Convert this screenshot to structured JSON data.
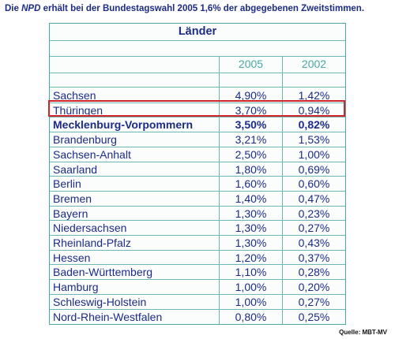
{
  "headline": {
    "prefix": "Die ",
    "party": "NPD",
    "suffix": " erhält bei der Bundestagswahl 2005 1,6% der abgegebenen Zweitstimmen."
  },
  "table": {
    "title": "Länder",
    "columns": [
      "2005",
      "2002"
    ],
    "rows": [
      {
        "name": "Sachsen",
        "v2005": "4,90%",
        "v2002": "1,42%"
      },
      {
        "name": "Thüringen",
        "v2005": "3,70%",
        "v2002": "0,94%"
      },
      {
        "name": "Mecklenburg-Vorpommern",
        "v2005": "3,50%",
        "v2002": "0,82%"
      },
      {
        "name": "Brandenburg",
        "v2005": "3,21%",
        "v2002": "1,53%"
      },
      {
        "name": "Sachsen-Anhalt",
        "v2005": "2,50%",
        "v2002": "1,00%"
      },
      {
        "name": "Saarland",
        "v2005": "1,80%",
        "v2002": "0,69%"
      },
      {
        "name": "Berlin",
        "v2005": "1,60%",
        "v2002": "0,60%"
      },
      {
        "name": "Bremen",
        "v2005": "1,40%",
        "v2002": "0,47%"
      },
      {
        "name": "Bayern",
        "v2005": "1,30%",
        "v2002": "0,23%"
      },
      {
        "name": "Niedersachsen",
        "v2005": "1,30%",
        "v2002": "0,27%"
      },
      {
        "name": "Rheinland-Pfalz",
        "v2005": "1,30%",
        "v2002": "0,43%"
      },
      {
        "name": "Hessen",
        "v2005": "1,20%",
        "v2002": "0,37%"
      },
      {
        "name": "Baden-Württemberg",
        "v2005": "1,10%",
        "v2002": "0,28%"
      },
      {
        "name": "Hamburg",
        "v2005": "1,00%",
        "v2002": "0,20%"
      },
      {
        "name": "Schleswig-Holstein",
        "v2005": "1,00%",
        "v2002": "0,27%"
      },
      {
        "name": "Nord-Rhein-Westfalen",
        "v2005": "0,80%",
        "v2002": "0,25%"
      }
    ],
    "bold_row": "Mecklenburg-Vorpommern",
    "highlighted_row": "Thüringen"
  },
  "colors": {
    "text": "#1c2b86",
    "border": "#4aa8a4",
    "highlight": "#d2232a"
  },
  "source": "Quelle: MBT-MV"
}
